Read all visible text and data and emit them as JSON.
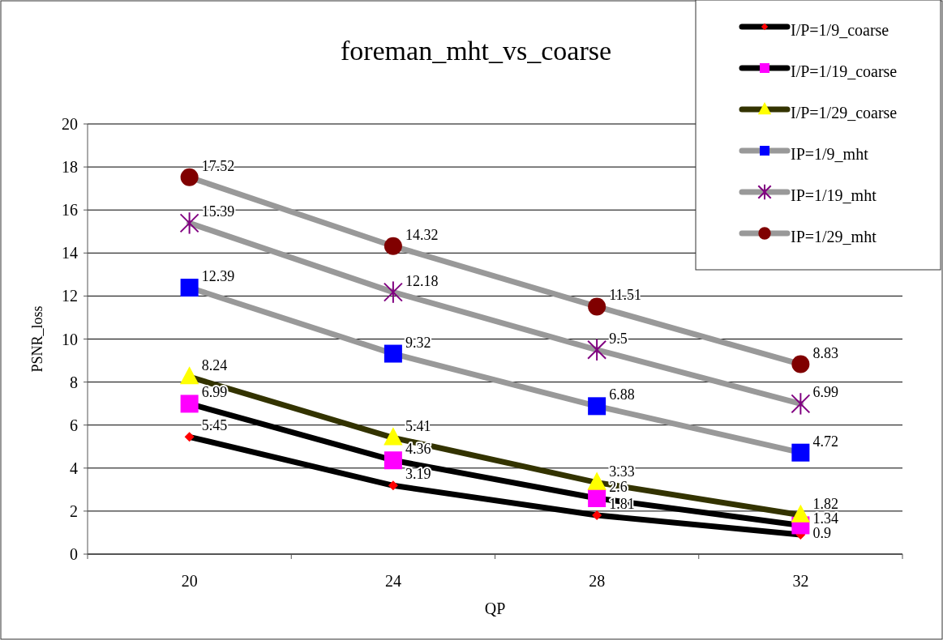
{
  "chart_data": {
    "type": "line",
    "title": "foreman_mht_vs_coarse",
    "xlabel": "QP",
    "ylabel": "PSNR_loss",
    "categories": [
      "20",
      "24",
      "28",
      "32"
    ],
    "ylim": [
      0,
      20
    ],
    "yticks": [
      0,
      2,
      4,
      6,
      8,
      10,
      12,
      14,
      16,
      18,
      20
    ],
    "grid": "y",
    "legend": "top right",
    "data_labels": true,
    "line_style": "solid",
    "series": [
      {
        "name": "I/P=1/9_coarse",
        "color": "#000000",
        "colors": [
          "#ff0000",
          "#ff0000",
          "#ff0000",
          "#ff0000"
        ],
        "marker": "diamond",
        "values": [
          5.45,
          3.19,
          1.81,
          0.9
        ]
      },
      {
        "name": "I/P=1/19_coarse",
        "color": "#000000",
        "colors": [
          "#ff00ff",
          "#ff00ff",
          "#ff00ff",
          "#ff00ff"
        ],
        "marker": "square",
        "values": [
          6.99,
          4.36,
          2.6,
          1.34
        ]
      },
      {
        "name": "I/P=1/29_coarse",
        "color": "#333300",
        "colors": [
          "#ffff00",
          "#ffff00",
          "#ffff00",
          "#ffff00"
        ],
        "marker": "triangle",
        "values": [
          8.24,
          5.41,
          3.33,
          1.82
        ]
      },
      {
        "name": "IP=1/9_mht",
        "color": "#999999",
        "colors": [
          "#0000ff",
          "#0000ff",
          "#0000ff",
          "#0000ff"
        ],
        "marker": "square",
        "values": [
          12.39,
          9.32,
          6.88,
          4.72
        ]
      },
      {
        "name": "IP=1/19_mht",
        "color": "#999999",
        "colors": [
          "#800080",
          "#800080",
          "#800080",
          "#800080"
        ],
        "marker": "cross",
        "values": [
          15.39,
          12.18,
          9.5,
          6.99
        ]
      },
      {
        "name": "IP=1/29_mht",
        "color": "#999999",
        "colors": [
          "#800000",
          "#800000",
          "#800000",
          "#800000"
        ],
        "marker": "circle",
        "values": [
          17.52,
          14.32,
          11.51,
          8.83
        ]
      }
    ]
  }
}
